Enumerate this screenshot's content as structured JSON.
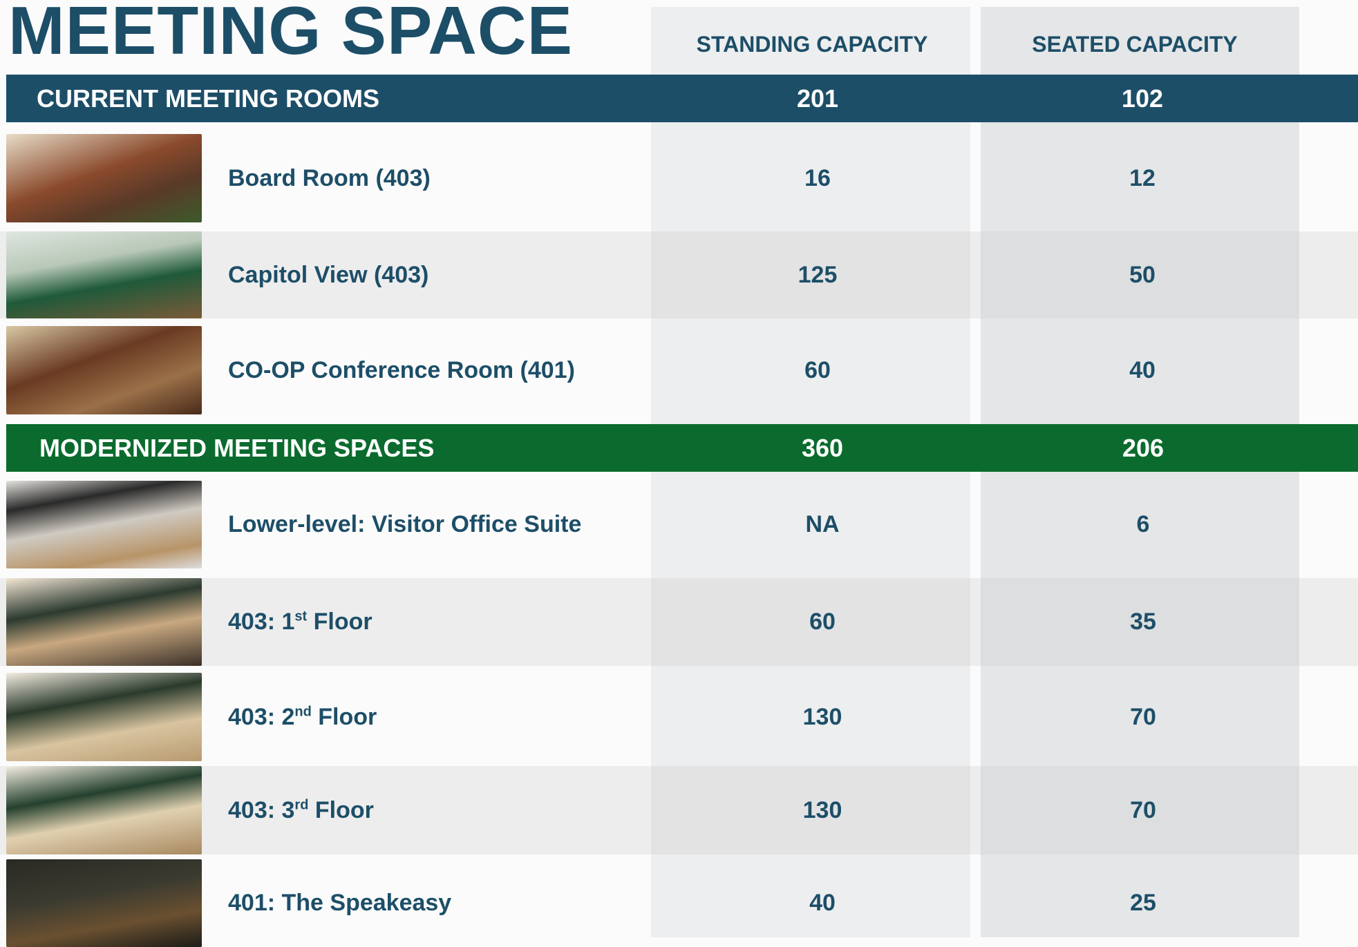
{
  "header": {
    "title": "MEETING SPACE",
    "columns": [
      "STANDING CAPACITY",
      "SEATED CAPACITY"
    ]
  },
  "sections": [
    {
      "title": "CURRENT MEETING ROOMS",
      "standing": 201,
      "seated": 102,
      "rows": [
        {
          "name": "Board Room  (403)",
          "standing": 16,
          "seated": 12
        },
        {
          "name": "Capitol View (403)",
          "standing": 125,
          "seated": 50
        },
        {
          "name": "CO-OP Conference Room (401)",
          "standing": 60,
          "seated": 40
        }
      ]
    },
    {
      "title": "MODERNIZED MEETING SPACES",
      "standing": 360,
      "seated": 206,
      "rows": [
        {
          "name": "Lower-level: Visitor Office Suite",
          "standing": "NA",
          "seated": 6
        },
        {
          "name_parts": [
            "403: 1",
            "st",
            " Floor"
          ],
          "standing": 60,
          "seated": 35
        },
        {
          "name_parts": [
            "403: 2",
            "nd",
            " Floor"
          ],
          "standing": 130,
          "seated": 70
        },
        {
          "name_parts": [
            "403: 3",
            "rd",
            " Floor"
          ],
          "standing": 130,
          "seated": 70
        },
        {
          "name": "401: The Speakeasy",
          "standing": 40,
          "seated": 25
        }
      ]
    }
  ]
}
